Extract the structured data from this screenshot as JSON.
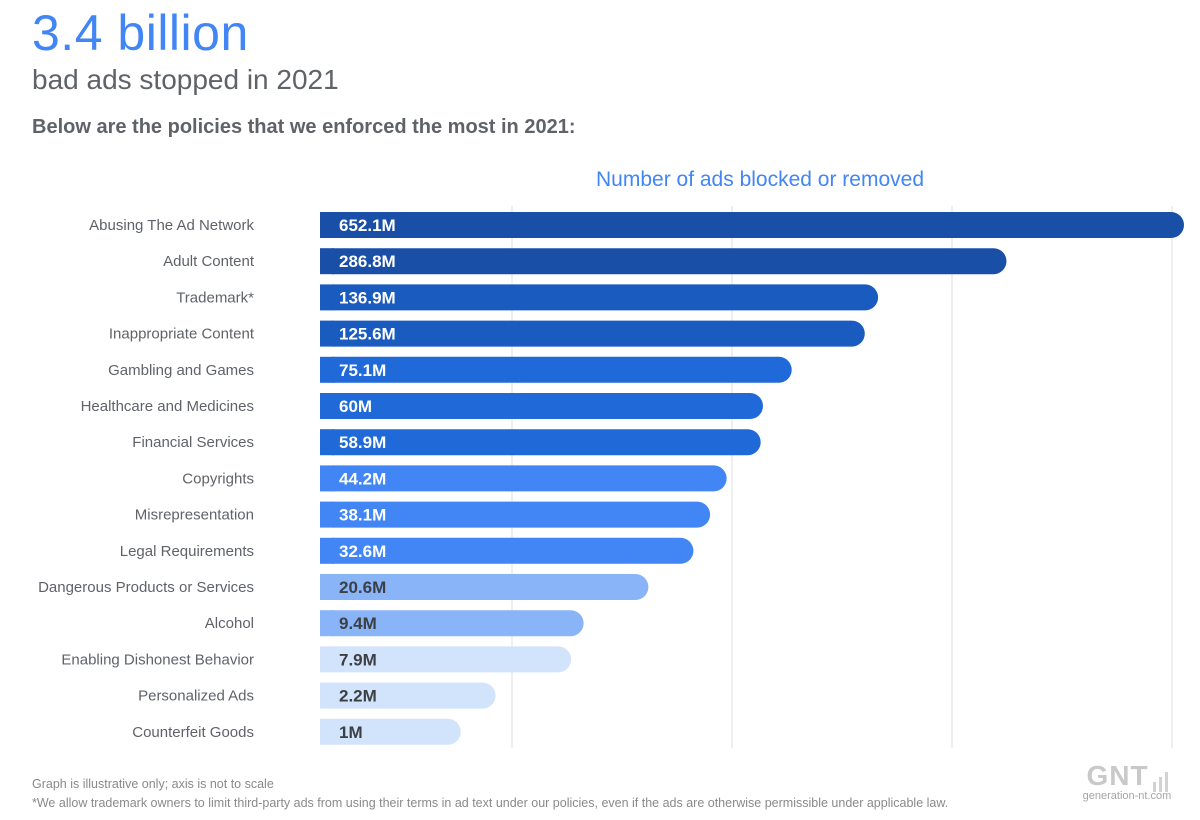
{
  "header": {
    "headline": "3.4 billion",
    "subhead": "bad ads stopped in 2021",
    "intro": "Below are the policies that we enforced the most in 2021:"
  },
  "chart_data": {
    "type": "bar",
    "orientation": "horizontal",
    "title": "Number of ads blocked or removed",
    "xlabel": "",
    "ylabel": "",
    "scale_note": "not to scale",
    "grid": true,
    "legend": "none",
    "categories": [
      "Abusing The Ad Network",
      "Adult Content",
      "Trademark*",
      "Inappropriate Content",
      "Gambling and Games",
      "Healthcare and Medicines",
      "Financial Services",
      "Copyrights",
      "Misrepresentation",
      "Legal Requirements",
      "Dangerous Products or Services",
      "Alcohol",
      "Enabling Dishonest Behavior",
      "Personalized Ads",
      "Counterfeit Goods"
    ],
    "values": [
      652.1,
      286.8,
      136.9,
      125.6,
      75.1,
      60,
      58.9,
      44.2,
      38.1,
      32.6,
      20.6,
      9.4,
      7.9,
      2.2,
      1
    ],
    "value_labels": [
      "652.1M",
      "286.8M",
      "136.9M",
      "125.6M",
      "75.1M",
      "60M",
      "58.9M",
      "44.2M",
      "38.1M",
      "32.6M",
      "20.6M",
      "9.4M",
      "7.9M",
      "2.2M",
      "1M"
    ],
    "unit": "M",
    "bar_colors": [
      "#1a4fa8",
      "#1a4fa8",
      "#1a5bc0",
      "#1a5bc0",
      "#1f6ad8",
      "#1f6ad8",
      "#1f6ad8",
      "#4285f4",
      "#4285f4",
      "#4285f4",
      "#8ab4f8",
      "#8ab4f8",
      "#d2e3fc",
      "#d2e3fc",
      "#d2e3fc"
    ],
    "label_colors": [
      "#ffffff",
      "#ffffff",
      "#ffffff",
      "#ffffff",
      "#ffffff",
      "#ffffff",
      "#ffffff",
      "#ffffff",
      "#ffffff",
      "#ffffff",
      "#3c4043",
      "#3c4043",
      "#3c4043",
      "#3c4043",
      "#3c4043"
    ]
  },
  "footnotes": {
    "illustrative": "Graph is illustrative only; axis is not to scale",
    "trademark": "*We allow trademark owners to limit third-party ads from using their terms in ad text under our policies, even if the ads are otherwise permissible under applicable law."
  },
  "watermark": {
    "logo": "GNT",
    "url": "generation-nt.com"
  },
  "colors": {
    "accent": "#4285f4",
    "text_gray": "#5f6368"
  }
}
